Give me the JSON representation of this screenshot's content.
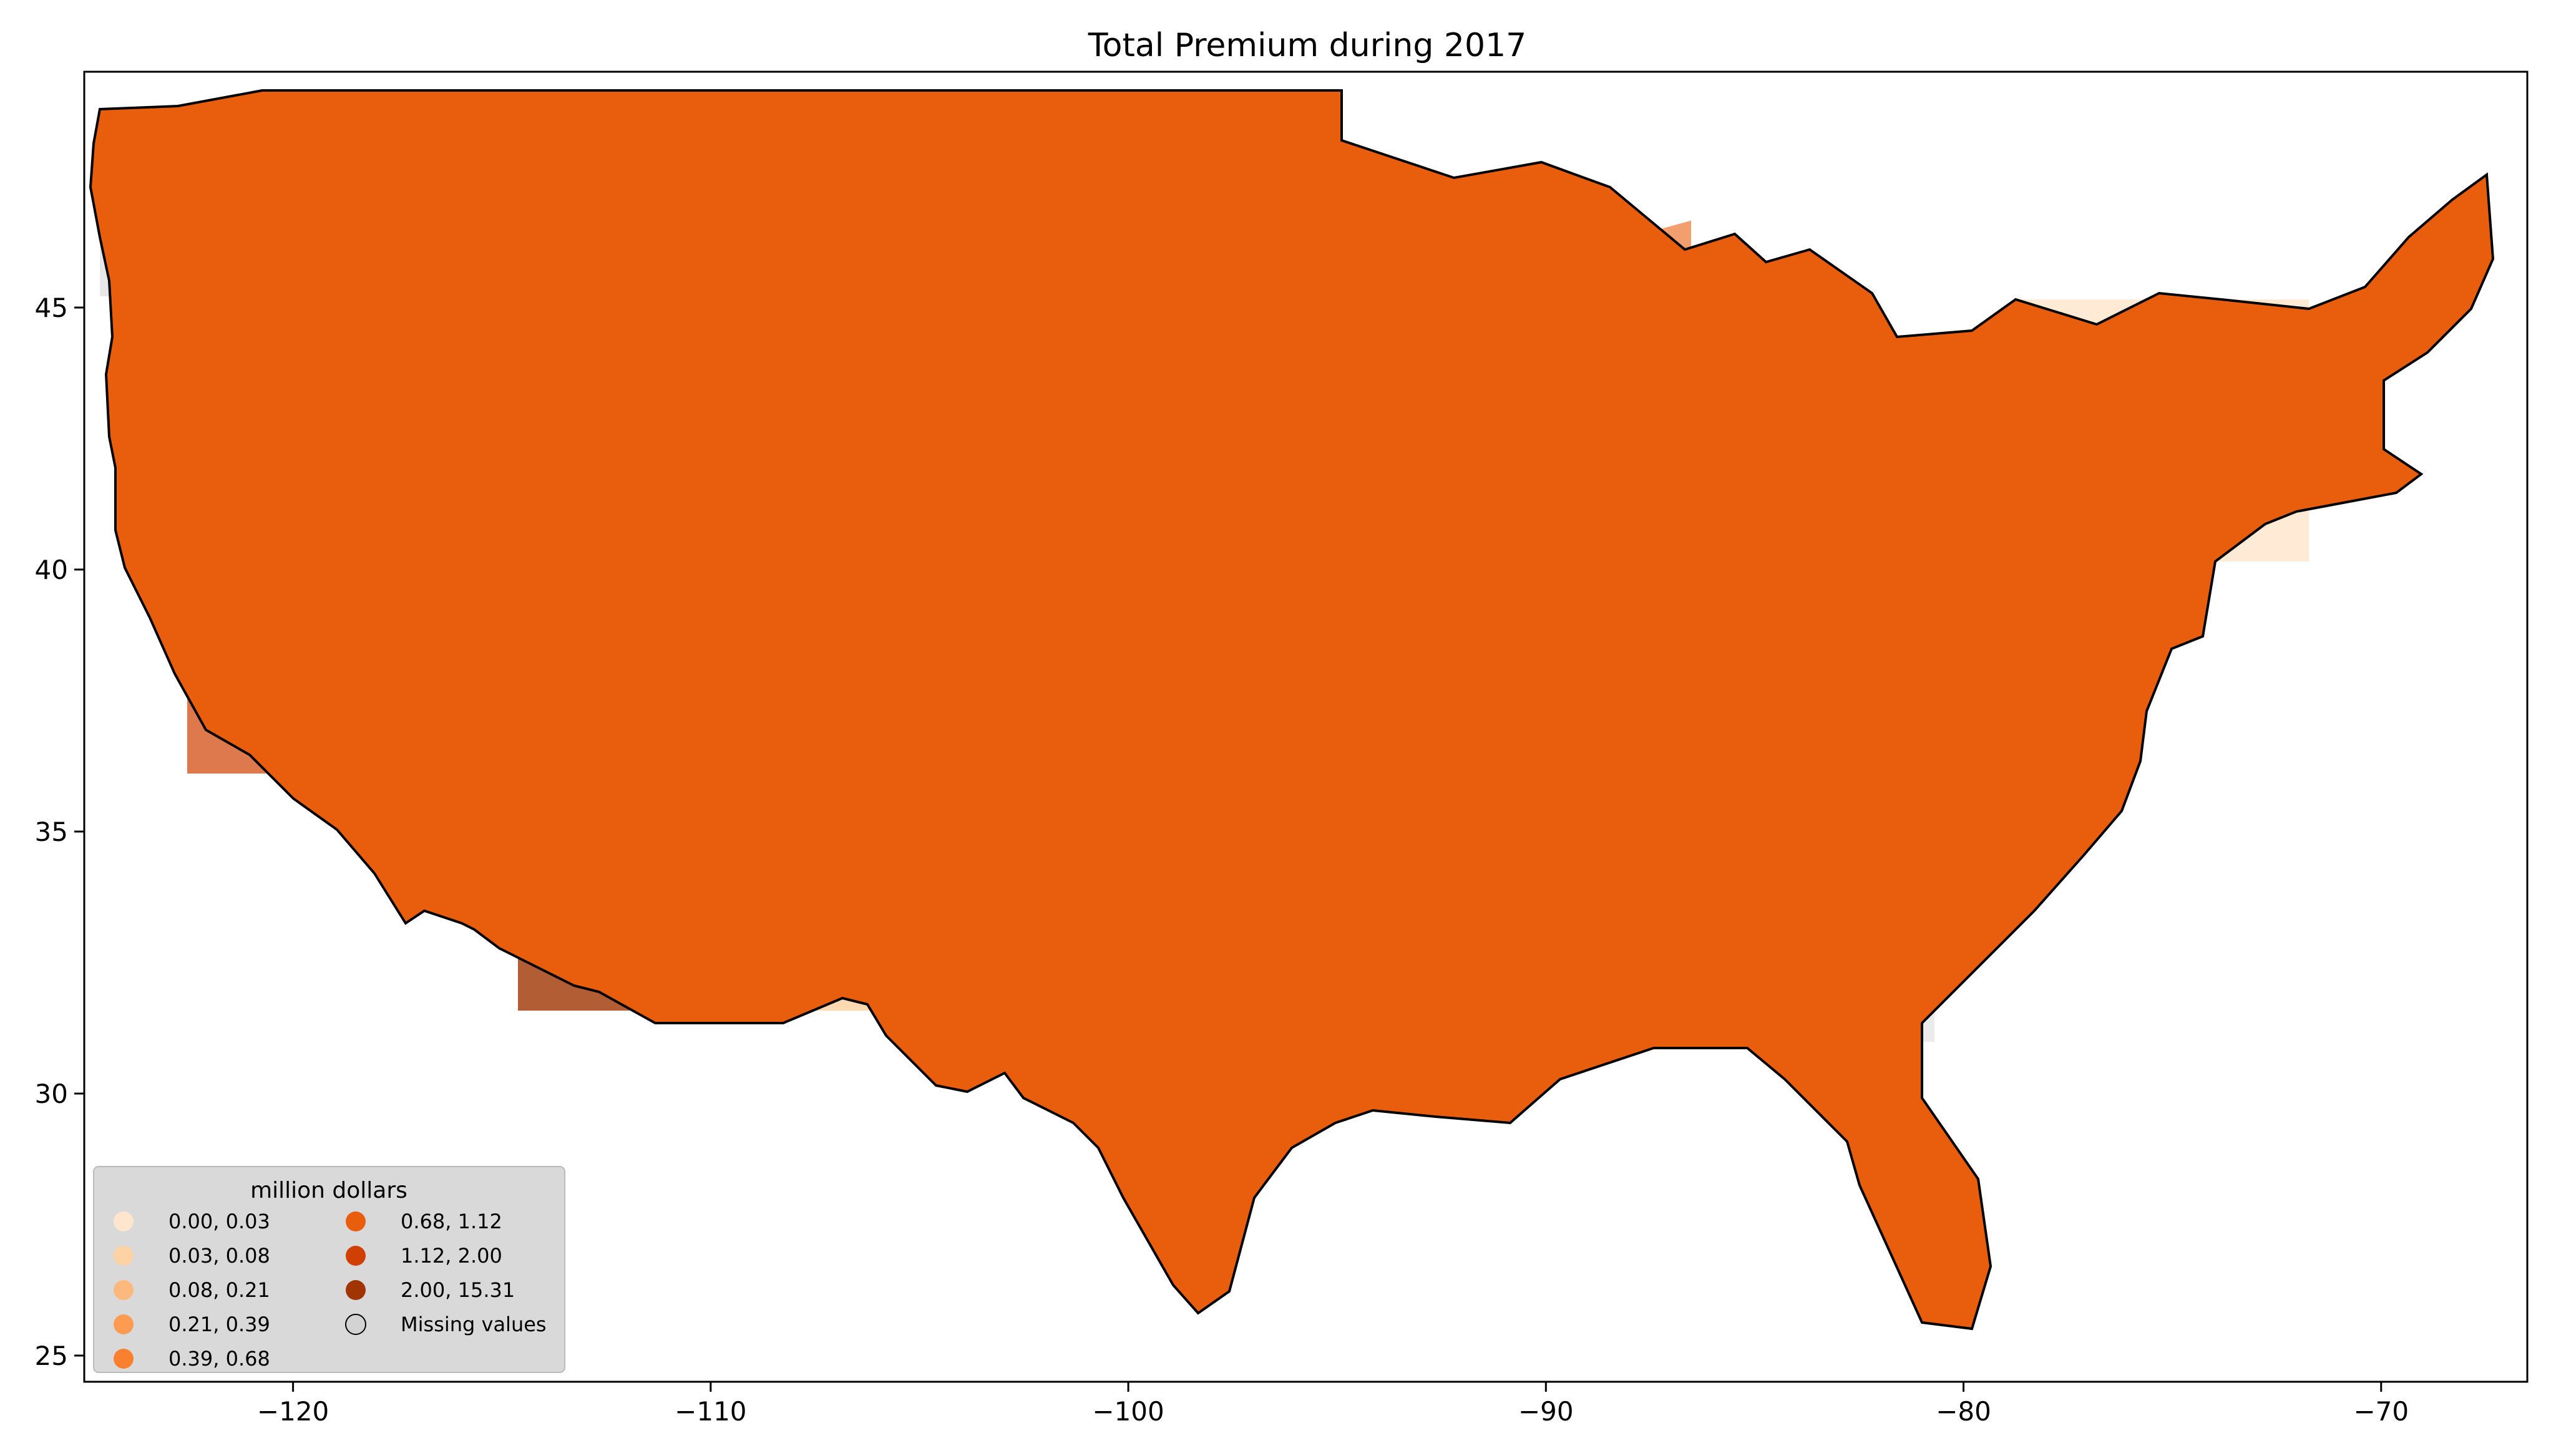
{
  "title": "Total  Premium during 2017",
  "map": {
    "region": "Contiguous United States (county level)",
    "missing_color": "#d3d3d3",
    "x_ticks": [
      {
        "value": -120,
        "label": "−120"
      },
      {
        "value": -110,
        "label": "−110"
      },
      {
        "value": -100,
        "label": "−100"
      },
      {
        "value": -90,
        "label": "−90"
      },
      {
        "value": -80,
        "label": "−80"
      },
      {
        "value": -70,
        "label": "−70"
      }
    ],
    "y_ticks": [
      {
        "value": 25,
        "label": "25"
      },
      {
        "value": 30,
        "label": "30"
      },
      {
        "value": 35,
        "label": "35"
      },
      {
        "value": 40,
        "label": "40"
      },
      {
        "value": 45,
        "label": "45"
      }
    ],
    "x_range": [
      -125,
      -66.5
    ],
    "y_range": [
      24.5,
      49.5
    ]
  },
  "legend": {
    "title": "million dollars",
    "items": [
      {
        "label": "0.00,  0.03",
        "color": "#fee6ce"
      },
      {
        "label": "0.03,  0.08",
        "color": "#fdd2a5"
      },
      {
        "label": "0.08,  0.21",
        "color": "#fdb97d"
      },
      {
        "label": "0.21,  0.39",
        "color": "#fd9c51"
      },
      {
        "label": "0.39,  0.68",
        "color": "#f8802e"
      },
      {
        "label": "0.68,  1.12",
        "color": "#e95e0d"
      },
      {
        "label": "1.12,  2.00",
        "color": "#cf4002"
      },
      {
        "label": "2.00, 15.31",
        "color": "#a03403"
      },
      {
        "label": "Missing values",
        "color": "#d3d3d3"
      }
    ]
  }
}
